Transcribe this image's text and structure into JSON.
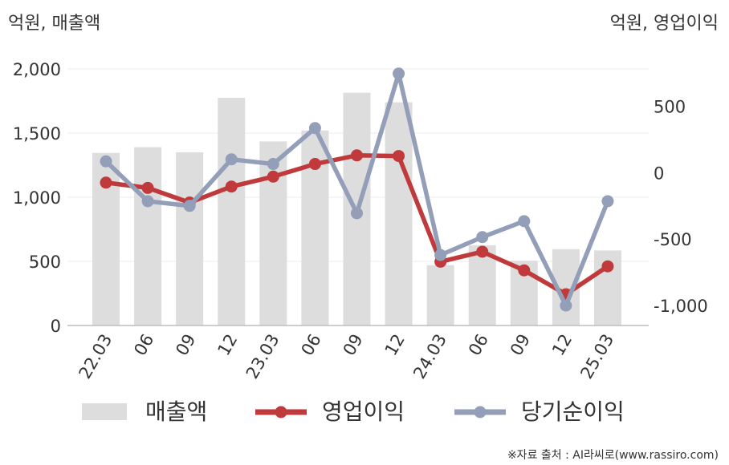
{
  "chart_data": {
    "type": "bar+line",
    "left_axis_label": "억원, 매출액",
    "right_axis_label": "억원, 영업이익",
    "categories": [
      "22.03",
      "06",
      "09",
      "12",
      "23.03",
      "06",
      "09",
      "12",
      "24.03",
      "06",
      "09",
      "12",
      "25.03"
    ],
    "left_ylim": [
      0,
      2000
    ],
    "left_ticks": [
      0,
      500,
      1000,
      1500,
      2000
    ],
    "left_tick_labels": [
      "0",
      "500",
      "1,000",
      "1,500",
      "2,000"
    ],
    "right_ylim": [
      -1150,
      780
    ],
    "right_ticks": [
      -1000,
      -500,
      0,
      500
    ],
    "right_tick_labels": [
      "-1,000",
      "-500",
      "0",
      "500"
    ],
    "grid": true,
    "legend_position": "bottom",
    "series": [
      {
        "name": "매출액",
        "kind": "bar",
        "axis": "left",
        "color": "#dddddd",
        "values": [
          1345,
          1390,
          1350,
          1775,
          1435,
          1520,
          1815,
          1740,
          470,
          625,
          505,
          595,
          585
        ]
      },
      {
        "name": "영업이익",
        "kind": "line",
        "axis": "right",
        "color": "#c0393b",
        "values": [
          -75,
          -115,
          -225,
          -105,
          -30,
          65,
          130,
          125,
          -670,
          -595,
          -735,
          -915,
          -705
        ]
      },
      {
        "name": "당기순이익",
        "kind": "line",
        "axis": "right",
        "color": "#939eb8",
        "values": [
          85,
          -215,
          -250,
          100,
          65,
          335,
          -305,
          745,
          -620,
          -485,
          -365,
          -1000,
          -215
        ]
      }
    ]
  },
  "source": "※자료 출처 : AI라씨로(www.rassiro.com)"
}
